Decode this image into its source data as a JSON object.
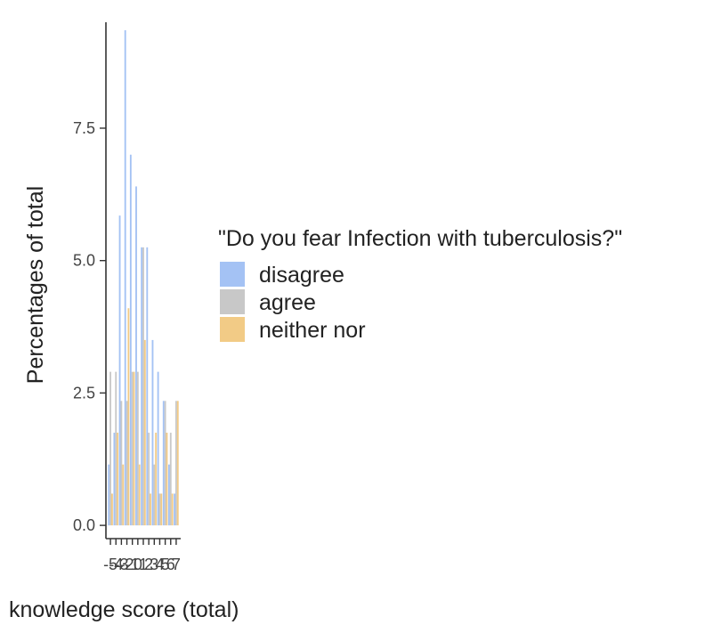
{
  "chart_data": {
    "type": "bar",
    "title": "",
    "xlabel": "knowledge score (total)",
    "ylabel": "Percentages of total",
    "categories": [
      "-5",
      "-4",
      "-3",
      "-2",
      "-1",
      "0",
      "1",
      "2",
      "3",
      "4",
      "5",
      "6",
      "7"
    ],
    "series": [
      {
        "name": "disagree",
        "color": "#a4c2f4",
        "values": [
          1.15,
          1.75,
          5.85,
          9.35,
          7.0,
          6.4,
          5.25,
          5.25,
          3.5,
          2.9,
          2.35,
          1.15,
          0.6
        ]
      },
      {
        "name": "agree",
        "color": "#c8c8c8",
        "values": [
          2.9,
          2.9,
          2.35,
          2.35,
          2.9,
          2.9,
          5.25,
          1.75,
          1.15,
          0.6,
          2.35,
          1.75,
          2.35
        ]
      },
      {
        "name": "neither nor",
        "color": "#f2cb86",
        "values": [
          0.6,
          1.75,
          1.15,
          4.1,
          2.9,
          1.15,
          3.5,
          0.6,
          1.75,
          0.6,
          1.75,
          0.6,
          2.35
        ]
      }
    ],
    "ylim": [
      -0.25,
      9.5
    ],
    "yticks": [
      "0.0",
      "2.5",
      "5.0",
      "7.5"
    ],
    "ytick_values": [
      0,
      2.5,
      5.0,
      7.5
    ],
    "legend": {
      "title": "\"Do you fear Infection with tuberculosis?\"",
      "position": "right",
      "labels": [
        "disagree",
        "agree",
        "neither nor"
      ]
    },
    "grid": false
  }
}
